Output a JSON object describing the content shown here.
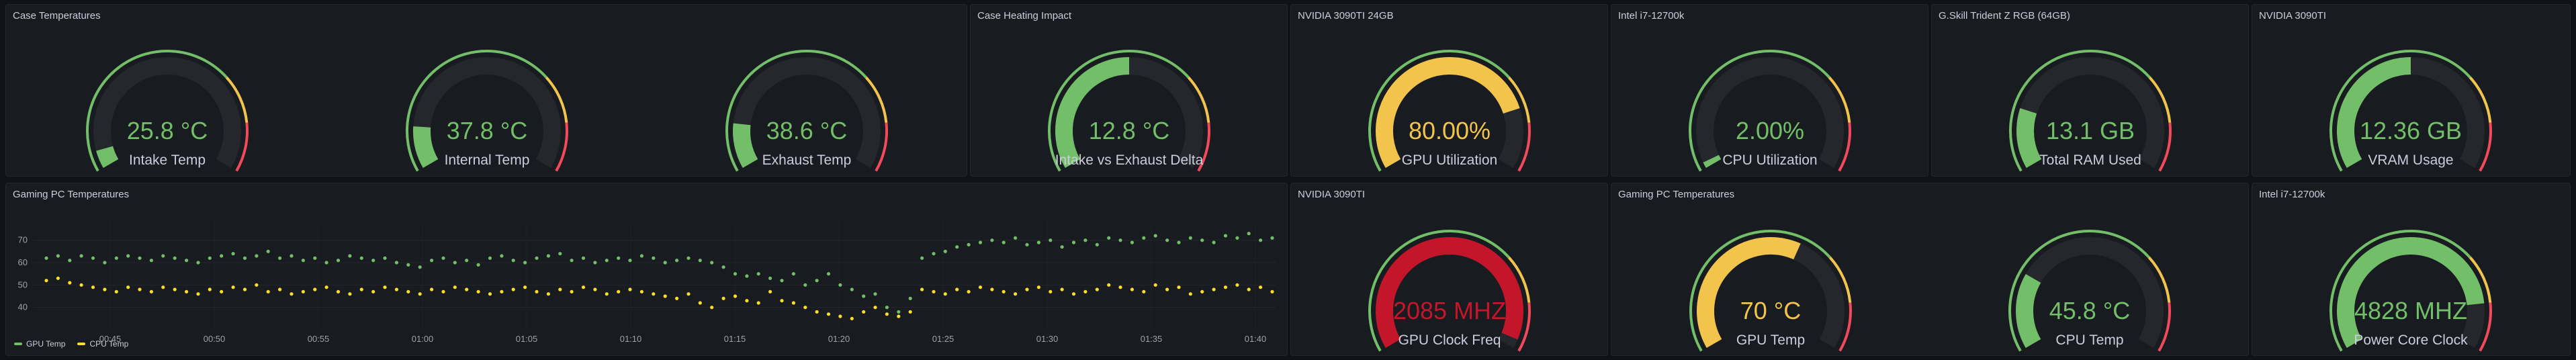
{
  "colors": {
    "green": "#73bf69",
    "yellow": "#fade2a",
    "orange": "#f2c44c",
    "red": "#f2495c",
    "darkred": "#c4162a",
    "track": "#25272c"
  },
  "panels": {
    "case_temps": {
      "title": "Case Temperatures"
    },
    "heating": {
      "title": "Case Heating Impact"
    },
    "gpu_util": {
      "title": "NVIDIA 3090TI 24GB"
    },
    "cpu_util": {
      "title": "Intel i7-12700k"
    },
    "ram": {
      "title": "G.Skill Trident Z RGB (64GB)"
    },
    "vram": {
      "title": "NVIDIA 3090TI"
    },
    "timeseries": {
      "title": "Gaming PC Temperatures"
    },
    "gpu_clock": {
      "title": "NVIDIA 3090TI"
    },
    "gaming_temps": {
      "title": "Gaming PC Temperatures"
    },
    "core_clock": {
      "title": "Intel i7-12700k"
    }
  },
  "gauges": {
    "intake": {
      "value": "25.8 °C",
      "label": "Intake Temp",
      "fraction": 0.06,
      "color": "#73bf69"
    },
    "internal": {
      "value": "37.8 °C",
      "label": "Internal Temp",
      "fraction": 0.14,
      "color": "#73bf69"
    },
    "exhaust": {
      "value": "38.6 °C",
      "label": "Exhaust Temp",
      "fraction": 0.15,
      "color": "#73bf69"
    },
    "delta": {
      "value": "12.8 °C",
      "label": "Intake vs Exhaust Delta",
      "fraction": 0.5,
      "color": "#73bf69"
    },
    "gpu_util": {
      "value": "80.00%",
      "label": "GPU Utilization",
      "fraction": 0.8,
      "color": "#f2c44c"
    },
    "cpu_util": {
      "value": "2.00%",
      "label": "CPU Utilization",
      "fraction": 0.02,
      "color": "#73bf69"
    },
    "ram": {
      "value": "13.1 GB",
      "label": "Total RAM Used",
      "fraction": 0.2,
      "color": "#73bf69"
    },
    "vram": {
      "value": "12.36 GB",
      "label": "VRAM Usage",
      "fraction": 0.5,
      "color": "#73bf69"
    },
    "gpu_clock": {
      "value": "2085 MHZ",
      "label": "GPU Clock Freq",
      "fraction": 0.97,
      "color": "#c4162a"
    },
    "gpu_temp": {
      "value": "70 °C",
      "label": "GPU Temp",
      "fraction": 0.6,
      "color": "#f2c44c"
    },
    "cpu_temp": {
      "value": "45.8 °C",
      "label": "CPU Temp",
      "fraction": 0.25,
      "color": "#73bf69"
    },
    "core_clock": {
      "value": "4828 MHZ",
      "label": "Power Core Clock",
      "fraction": 0.85,
      "color": "#73bf69"
    }
  },
  "chart_data": {
    "type": "scatter",
    "title": "Gaming PC Temperatures",
    "x_ticks": [
      "00:45",
      "00:50",
      "00:55",
      "01:00",
      "01:05",
      "01:10",
      "01:15",
      "01:20",
      "01:25",
      "01:30",
      "01:35",
      "01:40"
    ],
    "y_ticks": [
      40,
      50,
      60,
      70
    ],
    "ylim": [
      30,
      78
    ],
    "grid": true,
    "legend_placement": "bottom-left",
    "series": [
      {
        "name": "GPU Temp",
        "color": "#73bf69",
        "values": [
          62,
          63,
          61,
          63,
          62,
          60,
          62,
          63,
          62,
          61,
          63,
          62,
          61,
          60,
          62,
          63,
          64,
          62,
          63,
          65,
          62,
          63,
          61,
          62,
          60,
          61,
          63,
          62,
          61,
          62,
          60,
          59,
          58,
          61,
          62,
          60,
          61,
          59,
          62,
          63,
          61,
          60,
          62,
          63,
          64,
          61,
          62,
          60,
          61,
          62,
          61,
          63,
          62,
          60,
          61,
          62,
          61,
          60,
          58,
          55,
          54,
          55,
          53,
          52,
          55,
          50,
          52,
          55,
          50,
          48,
          45,
          46,
          40,
          38,
          44,
          62,
          64,
          65,
          67,
          68,
          69,
          70,
          69,
          71,
          68,
          69,
          70,
          67,
          69,
          70,
          68,
          71,
          70,
          69,
          71,
          72,
          70,
          69,
          71,
          70,
          69,
          72,
          71,
          73,
          70,
          71
        ]
      },
      {
        "name": "CPU Temp",
        "color": "#fade2a",
        "values": [
          52,
          53,
          51,
          50,
          49,
          48,
          47,
          49,
          48,
          47,
          49,
          48,
          47,
          46,
          48,
          47,
          49,
          48,
          50,
          47,
          48,
          46,
          47,
          48,
          49,
          47,
          46,
          48,
          47,
          49,
          48,
          47,
          46,
          48,
          47,
          49,
          48,
          47,
          46,
          47,
          48,
          49,
          47,
          46,
          48,
          47,
          49,
          48,
          46,
          47,
          48,
          47,
          46,
          45,
          44,
          46,
          42,
          40,
          44,
          45,
          43,
          42,
          47,
          43,
          42,
          40,
          38,
          37,
          36,
          35,
          38,
          40,
          37,
          36,
          38,
          48,
          47,
          46,
          48,
          47,
          49,
          48,
          47,
          46,
          48,
          49,
          47,
          48,
          46,
          47,
          48,
          50,
          49,
          48,
          47,
          50,
          48,
          49,
          46,
          47,
          48,
          49,
          50,
          48,
          49,
          47
        ]
      }
    ]
  }
}
